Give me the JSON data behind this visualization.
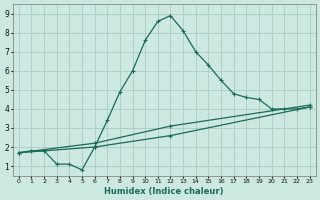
{
  "xlabel": "Humidex (Indice chaleur)",
  "xlim": [
    -0.5,
    23.5
  ],
  "ylim": [
    0.5,
    9.5
  ],
  "xticks": [
    0,
    1,
    2,
    3,
    4,
    5,
    6,
    7,
    8,
    9,
    10,
    11,
    12,
    13,
    14,
    15,
    16,
    17,
    18,
    19,
    20,
    21,
    22,
    23
  ],
  "yticks": [
    1,
    2,
    3,
    4,
    5,
    6,
    7,
    8,
    9
  ],
  "background_color": "#cce8e0",
  "grid_color": "#aaccc4",
  "line_color": "#1a6b5a",
  "line1_x": [
    0,
    1,
    2,
    3,
    4,
    5,
    6,
    7,
    8,
    9,
    10,
    11,
    12,
    13,
    14,
    15,
    16,
    17,
    18,
    19,
    20,
    21,
    22,
    23
  ],
  "line1_y": [
    1.7,
    1.8,
    1.8,
    1.1,
    1.1,
    0.8,
    2.0,
    3.4,
    4.9,
    6.0,
    7.6,
    8.6,
    8.9,
    8.1,
    7.0,
    6.3,
    5.5,
    4.8,
    4.6,
    4.5,
    4.0,
    4.0,
    4.0,
    4.1
  ],
  "line2_x": [
    0,
    6,
    12,
    23
  ],
  "line2_y": [
    1.7,
    2.0,
    2.6,
    4.1
  ],
  "line3_x": [
    0,
    6,
    12,
    23
  ],
  "line3_y": [
    1.7,
    2.2,
    3.1,
    4.2
  ],
  "marker_size": 2.5,
  "line_width": 0.9
}
